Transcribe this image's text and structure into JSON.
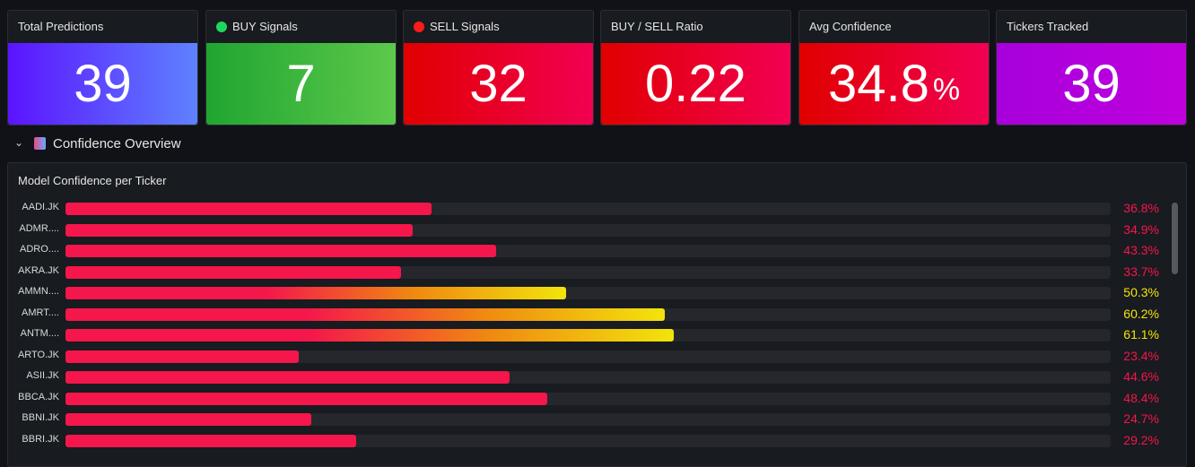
{
  "stats": [
    {
      "title": "Total Predictions",
      "value": 39,
      "bg": [
        "#5b14ff",
        "#5e82ff"
      ]
    },
    {
      "title": "BUY Signals",
      "value": 7,
      "dot": "#1ed760",
      "bg": [
        "#20a531",
        "#5cc94b"
      ]
    },
    {
      "title": "SELL Signals",
      "value": 32,
      "dot": "#ff1a1a",
      "bg": [
        "#e00000",
        "#f20052"
      ]
    },
    {
      "title": "BUY / SELL Ratio",
      "value": 0.22,
      "bg": [
        "#e00000",
        "#f20052"
      ]
    },
    {
      "title": "Avg Confidence",
      "value": 34.8,
      "unit": "%",
      "bg": [
        "#e00000",
        "#f20052"
      ]
    },
    {
      "title": "Tickers Tracked",
      "value": 39,
      "bg": [
        "#a700dc",
        "#bf00dc"
      ]
    }
  ],
  "section": {
    "title": "Confidence Overview"
  },
  "gauge": {
    "title": "Model Confidence per Ticker",
    "categories": [
      "AADI.JK",
      "ADMR....",
      "ADRO....",
      "AKRA.JK",
      "AMMN....",
      "AMRT....",
      "ANTM....",
      "ARTO.JK",
      "ASII.JK",
      "BBCA.JK",
      "BBNI.JK",
      "BBRI.JK"
    ],
    "values": [
      36.8,
      34.9,
      43.3,
      33.7,
      50.3,
      60.2,
      61.1,
      23.4,
      44.6,
      48.4,
      24.7,
      29.2
    ],
    "value_labels": [
      "36.8%",
      "34.9%",
      "43.3%",
      "33.7%",
      "50.3%",
      "60.2%",
      "61.1%",
      "23.4%",
      "44.6%",
      "48.4%",
      "24.7%",
      "29.2%"
    ],
    "xlim": [
      0,
      105
    ],
    "thresholds": [
      {
        "value": 0,
        "color": "#f5164b"
      },
      {
        "value": 50,
        "color": "#f2e40c"
      }
    ]
  }
}
